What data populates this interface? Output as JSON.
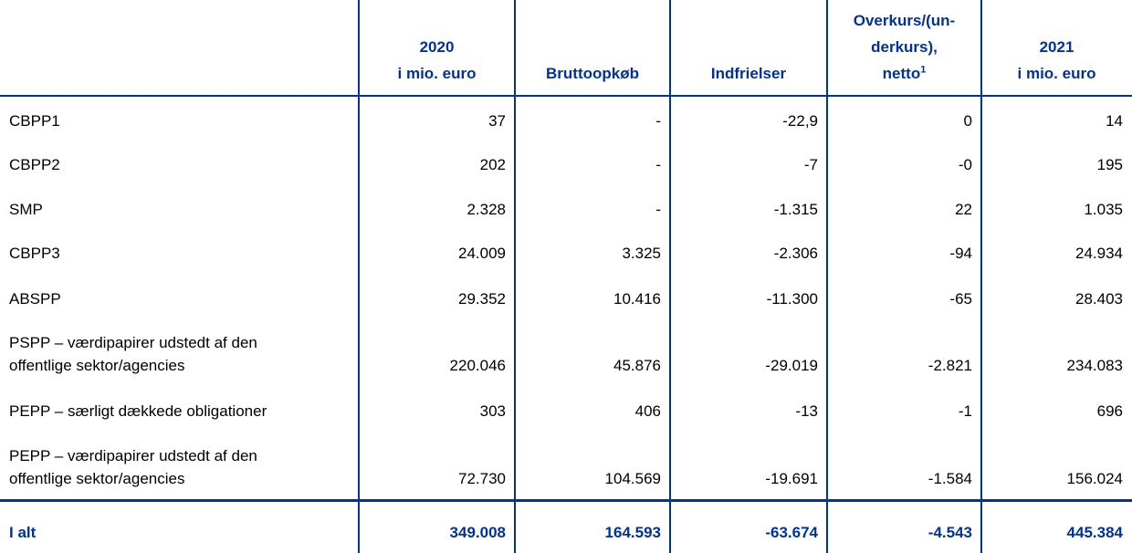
{
  "table": {
    "header": [
      {
        "lines": []
      },
      {
        "lines": [
          "2020",
          "i mio. euro"
        ]
      },
      {
        "lines": [
          "Bruttoopkøb"
        ]
      },
      {
        "lines": [
          "Indfrielser"
        ]
      },
      {
        "lines": [
          "Overkurs/(un-",
          "derkurs),",
          "netto"
        ],
        "footnote": "1"
      },
      {
        "lines": [
          "2021",
          "i mio. euro"
        ]
      }
    ],
    "rows": [
      {
        "label": [
          "CBPP1"
        ],
        "values": [
          "37",
          "-",
          "-22,9",
          "0",
          "14"
        ]
      },
      {
        "label": [
          "CBPP2"
        ],
        "values": [
          "202",
          "-",
          "-7",
          "-0",
          "195"
        ]
      },
      {
        "label": [
          "SMP"
        ],
        "values": [
          "2.328",
          "-",
          "-1.315",
          "22",
          "1.035"
        ]
      },
      {
        "label": [
          "CBPP3"
        ],
        "values": [
          "24.009",
          "3.325",
          "-2.306",
          "-94",
          "24.934"
        ]
      },
      {
        "label": [
          "ABSPP"
        ],
        "values": [
          "29.352",
          "10.416",
          "-11.300",
          "-65",
          "28.403"
        ]
      },
      {
        "label": [
          "PSPP – værdipapirer udstedt af den",
          "offentlige sektor/agencies"
        ],
        "values": [
          "220.046",
          "45.876",
          "-29.019",
          "-2.821",
          "234.083"
        ]
      },
      {
        "label": [
          "PEPP – særligt dækkede obligationer"
        ],
        "values": [
          "303",
          "406",
          "-13",
          "-1",
          "696"
        ]
      },
      {
        "label": [
          "PEPP – værdipapirer udstedt af den",
          "offentlige sektor/agencies"
        ],
        "values": [
          "72.730",
          "104.569",
          "-19.691",
          "-1.584",
          "156.024"
        ]
      }
    ],
    "total": {
      "label": [
        "I alt"
      ],
      "values": [
        "349.008",
        "164.593",
        "-63.674",
        "-4.543",
        "445.384"
      ]
    }
  }
}
